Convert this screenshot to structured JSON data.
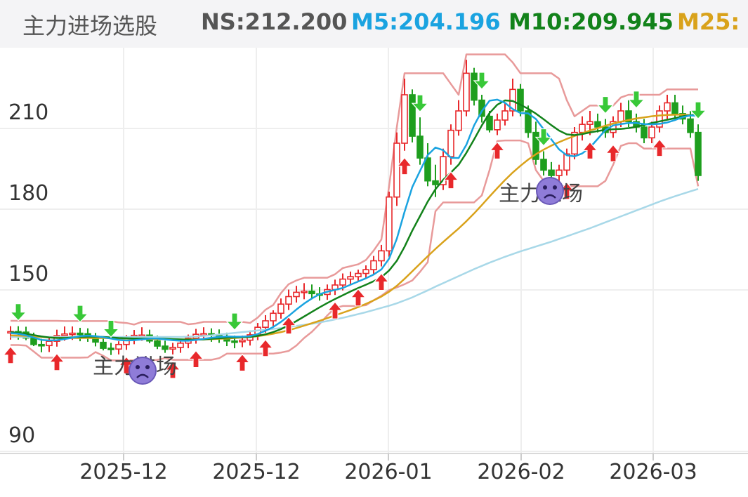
{
  "header": {
    "title": "主力进场选股",
    "ns": "NS:212.200",
    "m5": "M5:204.196",
    "m10": "M10:209.945",
    "m25": "M25:"
  },
  "colors": {
    "ns": "#555555",
    "m5": "#1aa3e0",
    "m10": "#12821a",
    "m25": "#d9a21b",
    "m60": "#a8d8e8",
    "up": "#e8282b",
    "down": "#1e9e1e",
    "band": "#e89a9a",
    "step": "#555555"
  },
  "chart_data": {
    "type": "candlestick",
    "title": "主力进场选股",
    "y_ticks": [
      90,
      150,
      180,
      210
    ],
    "x_ticks": [
      "2025-12",
      "2025-12",
      "2026-01",
      "2026-02",
      "2026-03"
    ],
    "ylim": [
      82,
      232
    ],
    "grid": true,
    "annotations": [
      {
        "text": "主力进场",
        "near": "2025-12 low",
        "icon": "sad-face-icon"
      },
      {
        "text": "主力进场",
        "near": "2026-02 pullback",
        "icon": "sad-face-icon"
      }
    ],
    "series": [
      {
        "name": "NS",
        "last": 212.2
      },
      {
        "name": "M5",
        "last": 204.196
      },
      {
        "name": "M10",
        "last": 209.945
      },
      {
        "name": "M25",
        "last": null
      }
    ],
    "ohlc": [
      [
        128.0,
        130.0,
        125.0,
        128.0
      ],
      [
        128.0,
        130.0,
        125.0,
        127.7
      ],
      [
        127.8,
        129.8,
        124.8,
        125.6
      ],
      [
        125.6,
        127.6,
        122.6,
        123.2
      ],
      [
        123.2,
        125.3,
        120.3,
        122.8
      ],
      [
        122.8,
        125.9,
        120.4,
        124.4
      ],
      [
        124.4,
        128.7,
        122.4,
        126.5
      ],
      [
        126.5,
        129.9,
        124.6,
        127.1
      ],
      [
        127.2,
        129.9,
        124.9,
        127.4
      ],
      [
        127.4,
        129.4,
        124.4,
        127.1
      ],
      [
        127.2,
        129.2,
        124.2,
        125.6
      ],
      [
        125.5,
        127.5,
        122.5,
        124.1
      ],
      [
        124.0,
        126.0,
        121.0,
        121.8
      ],
      [
        121.8,
        123.8,
        119.3,
        121.5
      ],
      [
        121.5,
        124.4,
        119.5,
        123.2
      ],
      [
        123.2,
        126.7,
        121.2,
        125.4
      ],
      [
        125.5,
        128.6,
        123.3,
        126.6
      ],
      [
        126.6,
        129.6,
        124.6,
        126.7
      ],
      [
        126.7,
        128.7,
        123.7,
        124.5
      ],
      [
        124.5,
        126.5,
        121.5,
        122.6
      ],
      [
        122.6,
        124.6,
        120.1,
        121.4
      ],
      [
        121.5,
        123.8,
        119.5,
        122.1
      ],
      [
        122.1,
        125.1,
        120.1,
        123.7
      ],
      [
        123.7,
        126.9,
        121.8,
        125.5
      ],
      [
        125.5,
        129.0,
        123.5,
        127.0
      ],
      [
        127.1,
        129.6,
        125.1,
        127.2
      ],
      [
        127.2,
        129.2,
        124.2,
        126.7
      ],
      [
        126.8,
        128.8,
        123.8,
        125.7
      ],
      [
        125.6,
        127.6,
        122.6,
        124.5
      ],
      [
        124.5,
        126.5,
        121.8,
        124.2
      ],
      [
        124.2,
        126.5,
        122.2,
        124.8
      ],
      [
        124.8,
        128.4,
        122.8,
        126.8
      ],
      [
        126.8,
        131.2,
        124.8,
        129.6
      ],
      [
        129.6,
        134.1,
        127.6,
        132.0
      ],
      [
        132.0,
        135.9,
        129.9,
        134.8
      ],
      [
        134.8,
        140.3,
        132.8,
        138.2
      ],
      [
        138.2,
        143.6,
        136.0,
        141.0
      ],
      [
        141.0,
        145.0,
        138.8,
        142.6
      ],
      [
        142.6,
        146.0,
        140.0,
        143.0
      ],
      [
        143.0,
        145.5,
        140.0,
        142.1
      ],
      [
        142.0,
        144.5,
        139.5,
        141.8
      ],
      [
        141.8,
        145.5,
        139.8,
        143.6
      ],
      [
        143.6,
        147.3,
        141.6,
        145.3
      ],
      [
        145.3,
        149.6,
        143.3,
        147.5
      ],
      [
        147.5,
        150.3,
        145.4,
        148.4
      ],
      [
        148.4,
        151.0,
        146.4,
        149.6
      ],
      [
        149.6,
        152.6,
        147.6,
        151.0
      ],
      [
        151.0,
        156.1,
        149.0,
        154.3
      ],
      [
        154.3,
        160.2,
        152.2,
        158.0
      ],
      [
        158.0,
        180.0,
        155.8,
        178.0
      ],
      [
        178.0,
        202.0,
        174.7,
        198.0
      ],
      [
        198.0,
        222.0,
        195.2,
        216.0
      ],
      [
        216.0,
        218.0,
        198.3,
        200.6
      ],
      [
        200.6,
        207.6,
        190.0,
        192.5
      ],
      [
        192.5,
        198.0,
        182.0,
        184.0
      ],
      [
        184.0,
        190.0,
        178.0,
        182.6
      ],
      [
        182.6,
        196.0,
        180.6,
        193.0
      ],
      [
        193.0,
        205.0,
        190.0,
        202.8
      ],
      [
        202.8,
        214.0,
        200.8,
        210.0
      ],
      [
        210.0,
        229.0,
        208.0,
        224.0
      ],
      [
        224.0,
        226.0,
        212.0,
        214.0
      ],
      [
        214.0,
        216.0,
        205.7,
        208.0
      ],
      [
        208.0,
        210.0,
        202.0,
        203.0
      ],
      [
        203.0,
        209.0,
        201.0,
        206.6
      ],
      [
        206.6,
        213.0,
        204.6,
        210.0
      ],
      [
        210.0,
        222.0,
        208.0,
        218.0
      ],
      [
        218.0,
        220.0,
        208.0,
        210.0
      ],
      [
        210.0,
        212.0,
        200.0,
        202.0
      ],
      [
        202.0,
        206.0,
        190.0,
        192.0
      ],
      [
        192.0,
        195.0,
        186.0,
        188.0
      ],
      [
        188.0,
        191.0,
        185.0,
        186.0
      ],
      [
        186.0,
        190.0,
        184.0,
        188.0
      ],
      [
        188.0,
        196.0,
        186.0,
        194.0
      ],
      [
        194.0,
        204.0,
        192.0,
        202.0
      ],
      [
        202.0,
        208.0,
        199.0,
        205.0
      ],
      [
        205.0,
        210.0,
        201.0,
        206.0
      ],
      [
        206.0,
        209.0,
        202.0,
        204.0
      ],
      [
        204.0,
        207.0,
        200.0,
        202.0
      ],
      [
        202.0,
        208.0,
        200.0,
        206.0
      ],
      [
        206.0,
        213.0,
        204.0,
        210.0
      ],
      [
        210.0,
        214.0,
        204.0,
        206.0
      ],
      [
        206.0,
        209.0,
        202.0,
        204.0
      ],
      [
        204.0,
        207.0,
        198.0,
        200.0
      ],
      [
        200.0,
        206.0,
        198.0,
        204.0
      ],
      [
        204.0,
        212.0,
        202.0,
        210.0
      ],
      [
        210.0,
        216.0,
        207.0,
        213.0
      ],
      [
        213.0,
        216.0,
        207.0,
        209.0
      ],
      [
        209.0,
        212.0,
        205.0,
        207.0
      ],
      [
        207.0,
        210.0,
        200.0,
        202.0
      ],
      [
        202.0,
        205.0,
        184.0,
        186.0
      ]
    ],
    "ma_fast": [
      127.4,
      127.2,
      126.6,
      125.8,
      124.9,
      124.7,
      124.8,
      125.2,
      125.7,
      126.3,
      126.5,
      126.3,
      125.9,
      125.4,
      124.9,
      124.7,
      124.8,
      125.1,
      125.4,
      125.4,
      125.1,
      124.8,
      124.6,
      124.6,
      124.9,
      125.3,
      125.7,
      126.0,
      126.2,
      126.1,
      126.1,
      126.3,
      127.1,
      128.3,
      129.7,
      131.6,
      133.8,
      136.2,
      138.4,
      140.3,
      141.9,
      142.8,
      143.5,
      144.2,
      145.4,
      146.6,
      147.8,
      149.2,
      151.1,
      155.1,
      162.5,
      172.5,
      181.7,
      187.7,
      193.6,
      196.4,
      195.4,
      192.6,
      192.5,
      197.4,
      204.6,
      209.9,
      213.8,
      214.2,
      213.0,
      210.7,
      209.2,
      209.1,
      207.0,
      203.2,
      199.4,
      195.7,
      193.5,
      193.1,
      194.2,
      196.4,
      199.6,
      202.9,
      204.6,
      205.1,
      205.5,
      205.5,
      205.1,
      205.0,
      205.2,
      205.7,
      206.6,
      207.7,
      208.3,
      208.2
    ],
    "ma_mid": [
      127.8,
      127.5,
      127.2,
      126.7,
      126.2,
      125.8,
      125.6,
      125.6,
      125.8,
      126.0,
      126.1,
      126.1,
      126.0,
      125.8,
      125.6,
      125.5,
      125.4,
      125.4,
      125.4,
      125.4,
      125.3,
      125.2,
      125.1,
      125.0,
      125.0,
      125.1,
      125.3,
      125.5,
      125.7,
      125.8,
      125.9,
      126.0,
      126.4,
      127.0,
      127.8,
      128.9,
      130.3,
      131.9,
      133.6,
      135.3,
      137.0,
      138.6,
      140.1,
      141.5,
      142.9,
      144.2,
      145.4,
      146.7,
      148.2,
      150.7,
      154.3,
      159.5,
      165.5,
      170.9,
      176.3,
      180.9,
      184.4,
      187.1,
      190.0,
      194.4,
      199.4,
      204.6,
      209.2,
      212.3,
      213.9,
      213.7,
      212.3,
      210.8,
      209.0,
      206.9,
      204.7,
      202.7,
      201.3,
      201.0,
      201.4,
      202.0,
      202.5,
      203.0,
      203.2,
      203.3,
      203.6,
      204.1,
      204.8,
      205.5,
      206.1,
      206.7,
      207.3,
      208.0,
      208.4,
      208.7
    ],
    "ma_slow": [
      126.6,
      126.5,
      126.4,
      126.2,
      126.0,
      125.8,
      125.7,
      125.6,
      125.6,
      125.6,
      125.6,
      125.6,
      125.6,
      125.5,
      125.4,
      125.4,
      125.3,
      125.3,
      125.3,
      125.2,
      125.2,
      125.1,
      125.1,
      125.1,
      125.1,
      125.1,
      125.2,
      125.3,
      125.4,
      125.6,
      125.8,
      126.0,
      126.3,
      126.7,
      127.2,
      127.8,
      128.5,
      129.3,
      130.2,
      131.1,
      132.0,
      133.0,
      134.0,
      135.0,
      136.0,
      137.1,
      138.3,
      139.6,
      141.0,
      142.8,
      145.0,
      147.6,
      150.4,
      153.2,
      156.0,
      158.7,
      161.3,
      163.8,
      166.3,
      169.0,
      171.9,
      175.0,
      178.2,
      181.3,
      184.3,
      187.1,
      189.6,
      191.9,
      193.9,
      195.6,
      197.1,
      198.4,
      199.6,
      200.7,
      201.7,
      202.7,
      203.6,
      204.5,
      205.3,
      206.0,
      206.6,
      207.2,
      207.6,
      208.0,
      208.3,
      208.5,
      208.6,
      208.6,
      208.4,
      208.1
    ],
    "ma_long": [
      126.0,
      126.0,
      126.0,
      126.0,
      126.0,
      126.0,
      126.0,
      126.0,
      126.0,
      126.0,
      126.0,
      126.0,
      126.0,
      126.0,
      126.0,
      126.0,
      126.0,
      126.0,
      126.0,
      126.0,
      126.0,
      126.0,
      126.0,
      126.1,
      126.2,
      126.4,
      126.6,
      126.9,
      127.2,
      127.5,
      127.8,
      128.1,
      128.4,
      128.7,
      129.0,
      129.3,
      129.7,
      130.1,
      130.5,
      130.9,
      131.4,
      131.9,
      132.5,
      133.1,
      133.8,
      134.5,
      135.2,
      136.0,
      136.8,
      137.6,
      138.5,
      139.6,
      140.7,
      142.0,
      143.3,
      144.7,
      146.0,
      147.3,
      148.6,
      149.9,
      151.2,
      152.4,
      153.6,
      154.7,
      155.8,
      156.8,
      157.8,
      158.7,
      159.6,
      160.5,
      161.4,
      162.4,
      163.4,
      164.4,
      165.4,
      166.4,
      167.5,
      168.6,
      169.7,
      170.8,
      171.9,
      173.0,
      174.1,
      175.2,
      176.3,
      177.3,
      178.3,
      179.2,
      180.1,
      181.0
    ]
  }
}
